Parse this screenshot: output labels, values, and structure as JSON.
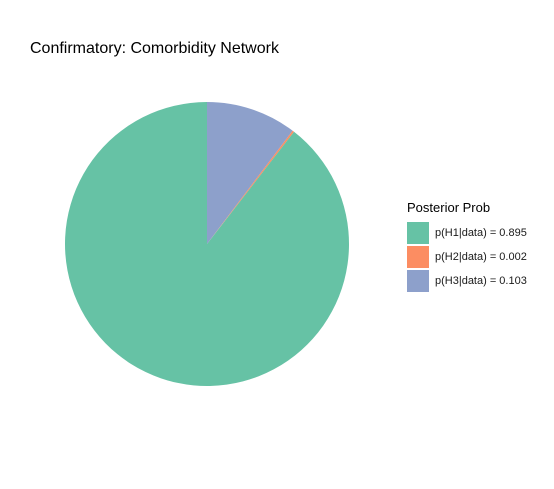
{
  "chart_data": {
    "type": "pie",
    "title": "Confirmatory: Comorbidity Network",
    "legend_title": "Posterior Prob",
    "legend_position": "right",
    "slices": [
      {
        "label": "p(H1|data) = 0.895",
        "value": 0.895,
        "color": "#66C2A5"
      },
      {
        "label": "p(H2|data) = 0.002",
        "value": 0.002,
        "color": "#FC8D62"
      },
      {
        "label": "p(H3|data) = 0.103",
        "value": 0.103,
        "color": "#8DA0CB"
      }
    ]
  }
}
